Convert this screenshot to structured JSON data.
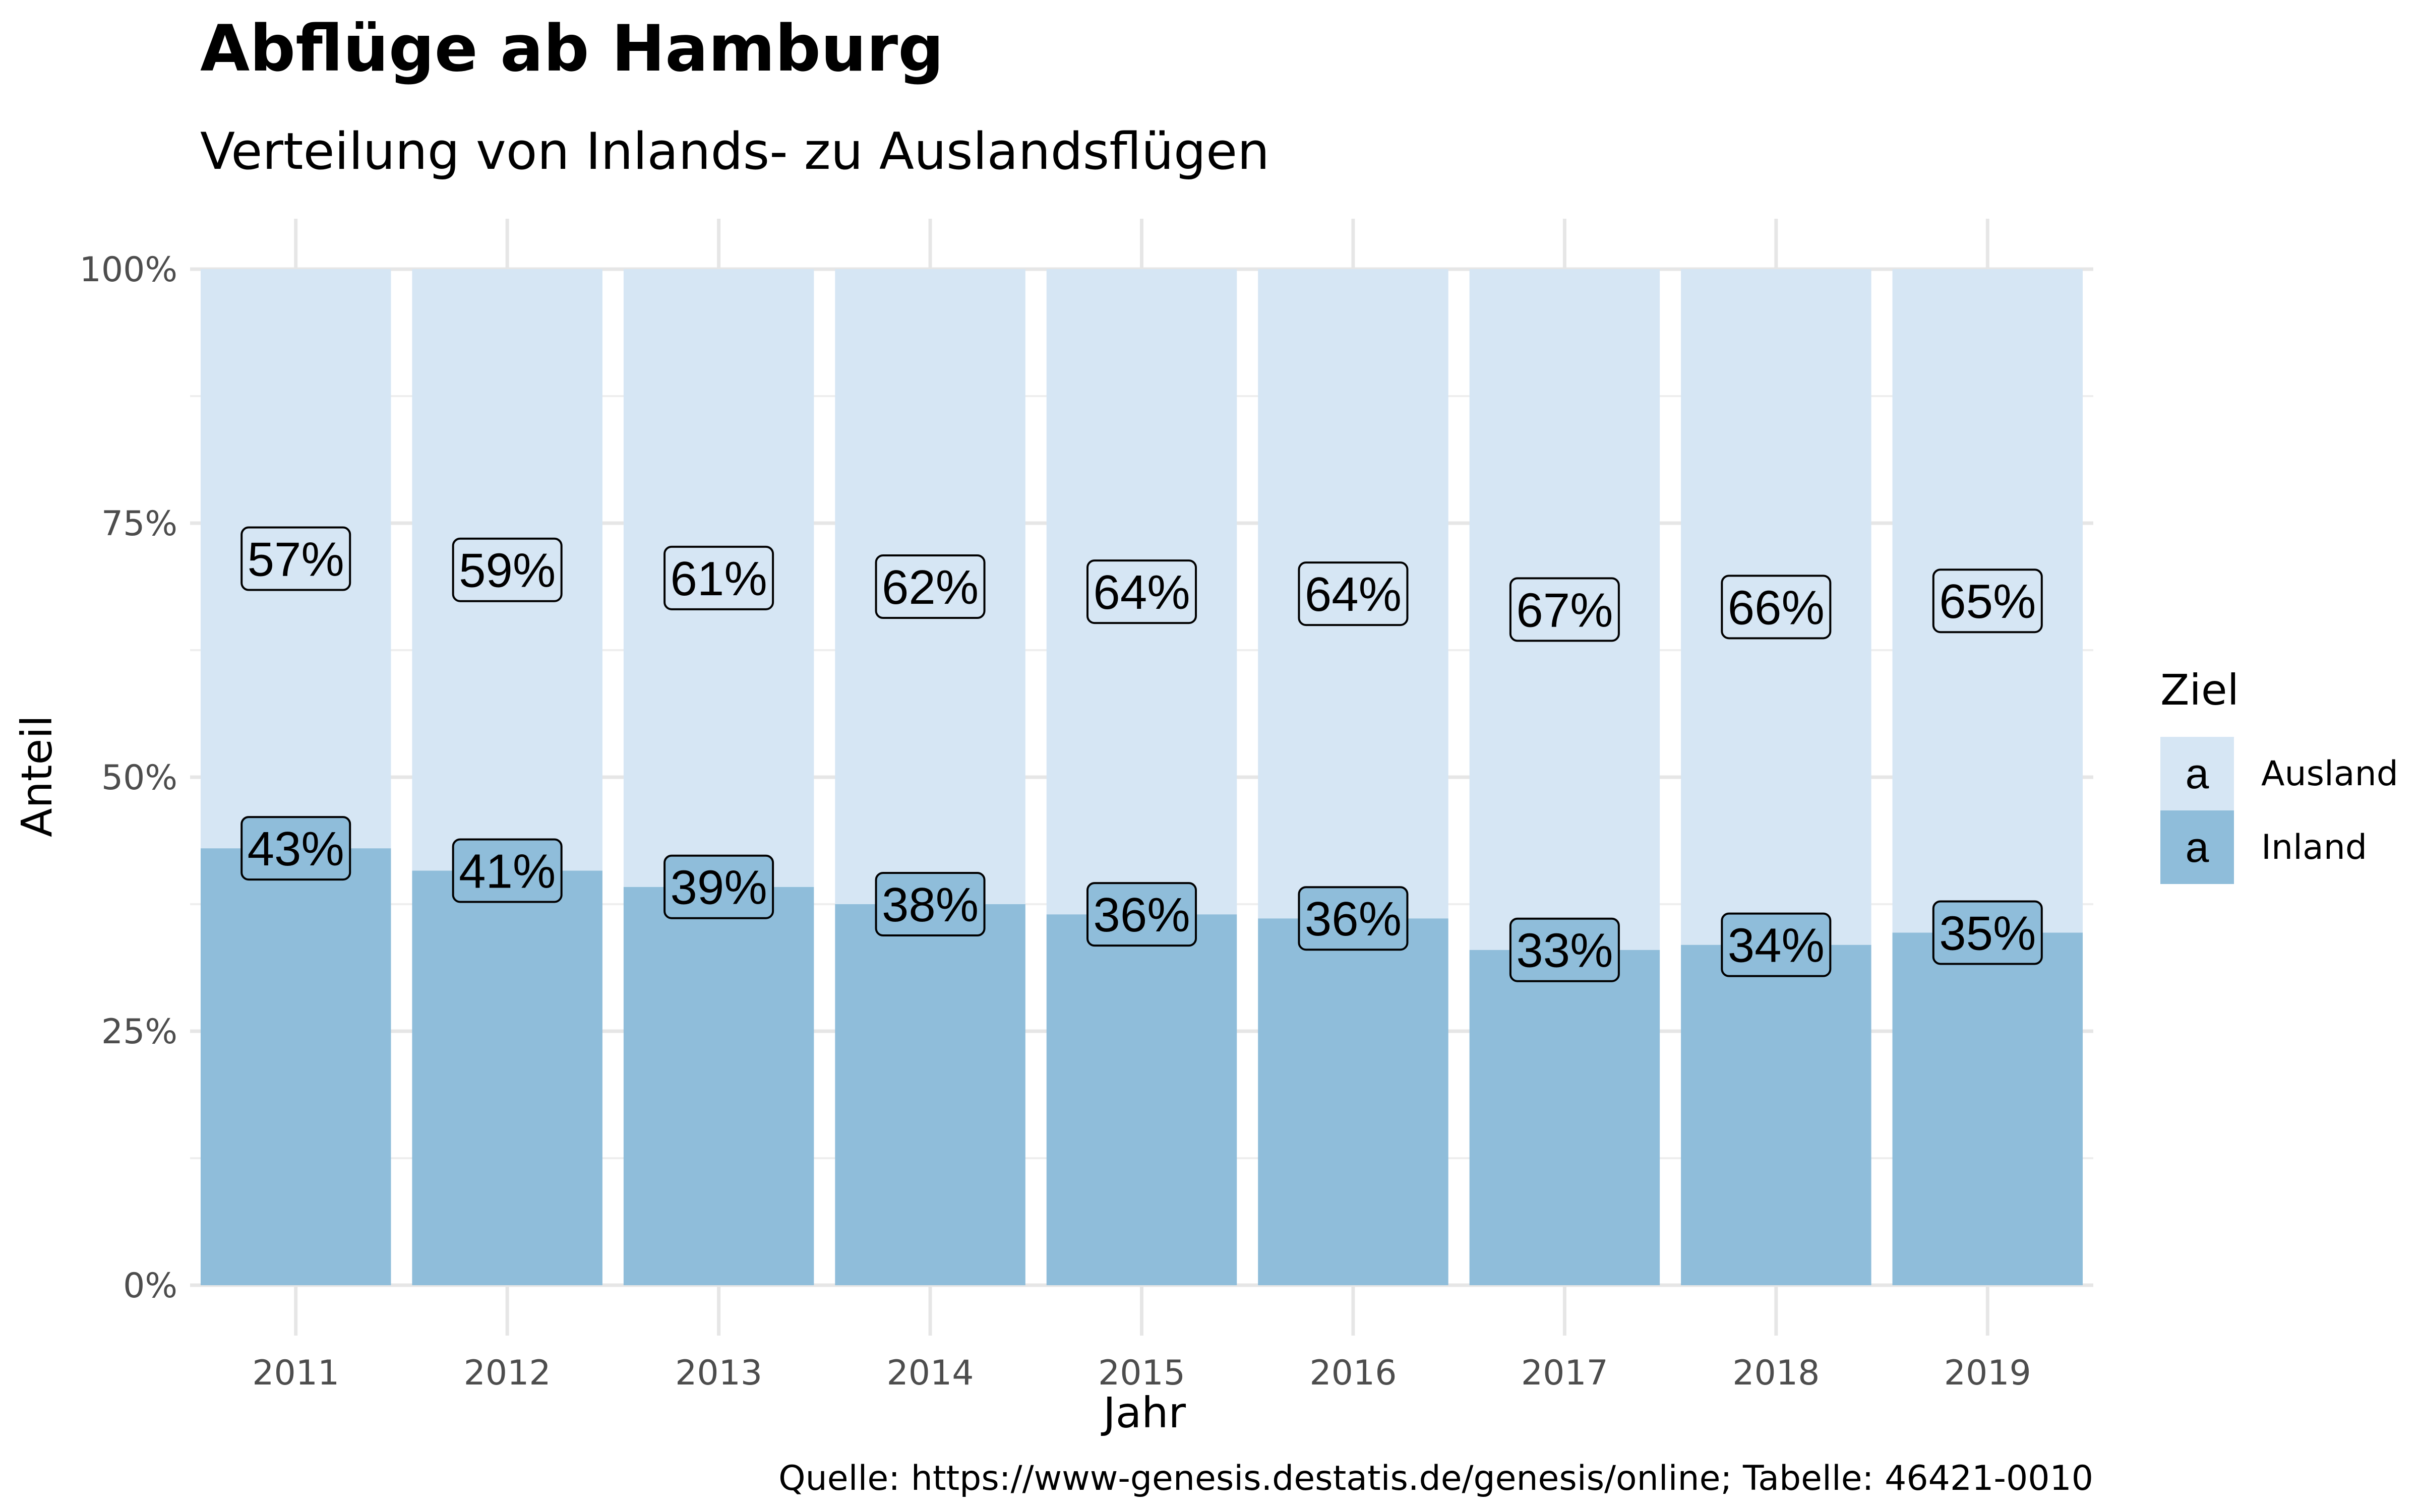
{
  "chart_data": {
    "type": "bar",
    "stacked": true,
    "title": "Abflüge ab Hamburg",
    "subtitle": "Verteilung von Inlands- zu Auslandsflügen",
    "xlabel": "Jahr",
    "ylabel": "Anteil",
    "caption": "Quelle: https://www-genesis.destatis.de/genesis/online; Tabelle: 46421-0010",
    "categories": [
      "2011",
      "2012",
      "2013",
      "2014",
      "2015",
      "2016",
      "2017",
      "2018",
      "2019"
    ],
    "ylim": [
      0,
      1
    ],
    "yticks": [
      0,
      0.25,
      0.5,
      0.75,
      1
    ],
    "ytick_labels": [
      "0%",
      "25%",
      "50%",
      "75%",
      "100%"
    ],
    "grid": true,
    "legend": {
      "title": "Ziel",
      "placement": "right",
      "key_glyph": "a"
    },
    "series": [
      {
        "name": "Inland",
        "color": "#8fbdda",
        "values": [
          0.43,
          0.408,
          0.392,
          0.375,
          0.365,
          0.361,
          0.33,
          0.335,
          0.347
        ],
        "labels": [
          "43%",
          "41%",
          "39%",
          "38%",
          "36%",
          "36%",
          "33%",
          "34%",
          "35%"
        ]
      },
      {
        "name": "Ausland",
        "color": "#d6e6f4",
        "values": [
          0.57,
          0.592,
          0.608,
          0.625,
          0.635,
          0.639,
          0.67,
          0.665,
          0.653
        ],
        "labels": [
          "57%",
          "59%",
          "61%",
          "62%",
          "64%",
          "64%",
          "67%",
          "66%",
          "65%"
        ]
      }
    ]
  }
}
